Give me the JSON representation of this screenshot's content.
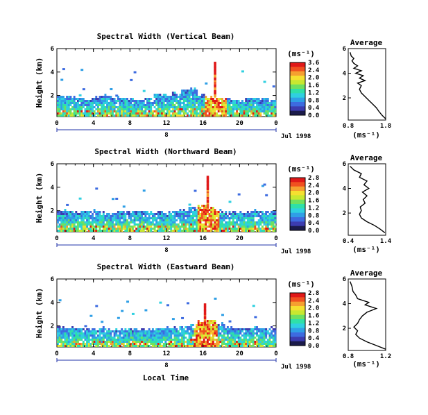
{
  "chart_data": {
    "type": "heatmap",
    "colorscale": [
      "#1b1b4b",
      "#3c3cb0",
      "#3d6be0",
      "#2f9fe6",
      "#2fd0e0",
      "#2fe0a8",
      "#6fe060",
      "#c8e830",
      "#f5e030",
      "#f5a030",
      "#f05020",
      "#e01818"
    ],
    "date_label": "Jul 1998",
    "x_ticks": [
      "0",
      "4",
      "8",
      "12",
      "16",
      "20",
      "0"
    ],
    "day_marker": "8",
    "xlabel": "Local Time",
    "panels": [
      {
        "title": "Spectral Width (Vertical Beam)",
        "ylabel": "Height (km)",
        "y_ticks": [
          "2",
          "4",
          "6"
        ],
        "ylim": [
          0.2,
          6
        ],
        "colorbar_unit": "(ms⁻¹)",
        "colorbar_ticks": [
          "3.6",
          "2.4",
          "2.0",
          "1.6",
          "1.2",
          "0.8",
          "0.4",
          "0.0"
        ],
        "layer_top_km": [
          2.0,
          2.0,
          1.9,
          1.8,
          2.0,
          2.1,
          2.0,
          1.9,
          1.8,
          1.8,
          1.9,
          2.2,
          2.1,
          2.3,
          2.6,
          2.7,
          2.2,
          2.0,
          1.9,
          1.8,
          1.7,
          1.8,
          1.9,
          1.8,
          1.7
        ],
        "spike": {
          "x": 17.3,
          "top_km": 5.0
        },
        "average": {
          "title": "Average",
          "xlim": [
            0.8,
            1.8
          ],
          "x_ticks": [
            "0.8",
            "1.8"
          ],
          "y_ticks": [
            "2",
            "4",
            "6"
          ],
          "ylim": [
            0.2,
            6
          ],
          "xlabel": "(ms⁻¹)",
          "profile": [
            [
              1.8,
              0.3
            ],
            [
              1.7,
              0.6
            ],
            [
              1.62,
              0.9
            ],
            [
              1.55,
              1.2
            ],
            [
              1.45,
              1.5
            ],
            [
              1.35,
              1.8
            ],
            [
              1.25,
              2.1
            ],
            [
              1.15,
              2.4
            ],
            [
              1.1,
              2.7
            ],
            [
              1.15,
              3.0
            ],
            [
              1.05,
              3.2
            ],
            [
              1.25,
              3.4
            ],
            [
              1.1,
              3.6
            ],
            [
              1.2,
              3.8
            ],
            [
              1.0,
              4.0
            ],
            [
              1.15,
              4.2
            ],
            [
              0.95,
              4.4
            ],
            [
              1.05,
              4.6
            ],
            [
              0.95,
              4.8
            ],
            [
              0.9,
              5.0
            ],
            [
              0.95,
              5.2
            ],
            [
              0.88,
              5.4
            ],
            [
              0.85,
              5.7
            ]
          ]
        }
      },
      {
        "title": "Spectral Width (Northward Beam)",
        "ylabel": "Height (km)",
        "y_ticks": [
          "2",
          "4",
          "6"
        ],
        "ylim": [
          0.2,
          6
        ],
        "colorbar_unit": "(ms⁻¹)",
        "colorbar_ticks": [
          "2.8",
          "2.4",
          "2.0",
          "1.6",
          "1.2",
          "0.8",
          "0.4",
          "0.0"
        ],
        "layer_top_km": [
          2.1,
          2.1,
          2.0,
          2.0,
          2.1,
          2.0,
          1.9,
          2.0,
          2.1,
          2.1,
          2.0,
          2.0,
          2.0,
          2.1,
          2.2,
          2.4,
          2.6,
          2.3,
          2.1,
          2.0,
          2.0,
          2.0,
          2.1,
          2.0,
          2.0
        ],
        "spike": {
          "x": 16.5,
          "top_km": 5.0
        },
        "average": {
          "title": "Average",
          "xlim": [
            0.4,
            1.4
          ],
          "x_ticks": [
            "0.4",
            "1.4"
          ],
          "y_ticks": [
            "2",
            "4",
            "6"
          ],
          "ylim": [
            0.2,
            6
          ],
          "xlabel": "(ms⁻¹)",
          "profile": [
            [
              1.38,
              0.4
            ],
            [
              1.25,
              0.7
            ],
            [
              1.1,
              1.0
            ],
            [
              0.9,
              1.3
            ],
            [
              0.75,
              1.6
            ],
            [
              0.7,
              1.9
            ],
            [
              0.75,
              2.2
            ],
            [
              0.72,
              2.5
            ],
            [
              0.85,
              2.8
            ],
            [
              0.8,
              3.1
            ],
            [
              0.9,
              3.4
            ],
            [
              0.78,
              3.7
            ],
            [
              0.95,
              4.0
            ],
            [
              0.82,
              4.3
            ],
            [
              0.9,
              4.6
            ],
            [
              0.7,
              4.9
            ],
            [
              0.75,
              5.2
            ],
            [
              0.55,
              5.5
            ],
            [
              0.45,
              5.8
            ]
          ]
        }
      },
      {
        "title": "Spectral Width (Eastward Beam)",
        "ylabel": "Height (km)",
        "y_ticks": [
          "2",
          "4",
          "6"
        ],
        "ylim": [
          0.2,
          6
        ],
        "colorbar_unit": "(ms⁻¹)",
        "colorbar_ticks": [
          "2.8",
          "2.4",
          "2.0",
          "1.6",
          "1.2",
          "0.8",
          "0.4",
          "0.0"
        ],
        "layer_top_km": [
          2.0,
          1.9,
          1.9,
          1.8,
          1.8,
          1.9,
          1.8,
          1.8,
          1.9,
          1.9,
          1.8,
          1.8,
          1.9,
          2.0,
          2.1,
          2.2,
          2.5,
          2.6,
          2.3,
          2.0,
          1.9,
          1.9,
          2.0,
          1.9,
          1.9
        ],
        "spike": {
          "x": 16.2,
          "top_km": 4.0
        },
        "average": {
          "title": "Average",
          "xlim": [
            0.8,
            1.2
          ],
          "x_ticks": [
            "0.8",
            "1.2"
          ],
          "y_ticks": [
            "2",
            "4",
            "6"
          ],
          "ylim": [
            0.2,
            6
          ],
          "xlabel": "(ms⁻¹)",
          "profile": [
            [
              1.2,
              0.3
            ],
            [
              1.1,
              0.6
            ],
            [
              1.0,
              0.9
            ],
            [
              0.92,
              1.2
            ],
            [
              0.88,
              1.5
            ],
            [
              0.9,
              1.8
            ],
            [
              0.86,
              2.1
            ],
            [
              0.9,
              2.4
            ],
            [
              0.92,
              2.7
            ],
            [
              0.95,
              3.0
            ],
            [
              1.0,
              3.3
            ],
            [
              1.1,
              3.6
            ],
            [
              0.98,
              3.9
            ],
            [
              1.02,
              4.1
            ],
            [
              0.9,
              4.4
            ],
            [
              0.88,
              4.7
            ],
            [
              0.85,
              5.0
            ],
            [
              0.84,
              5.4
            ],
            [
              0.82,
              5.8
            ]
          ]
        }
      }
    ]
  }
}
